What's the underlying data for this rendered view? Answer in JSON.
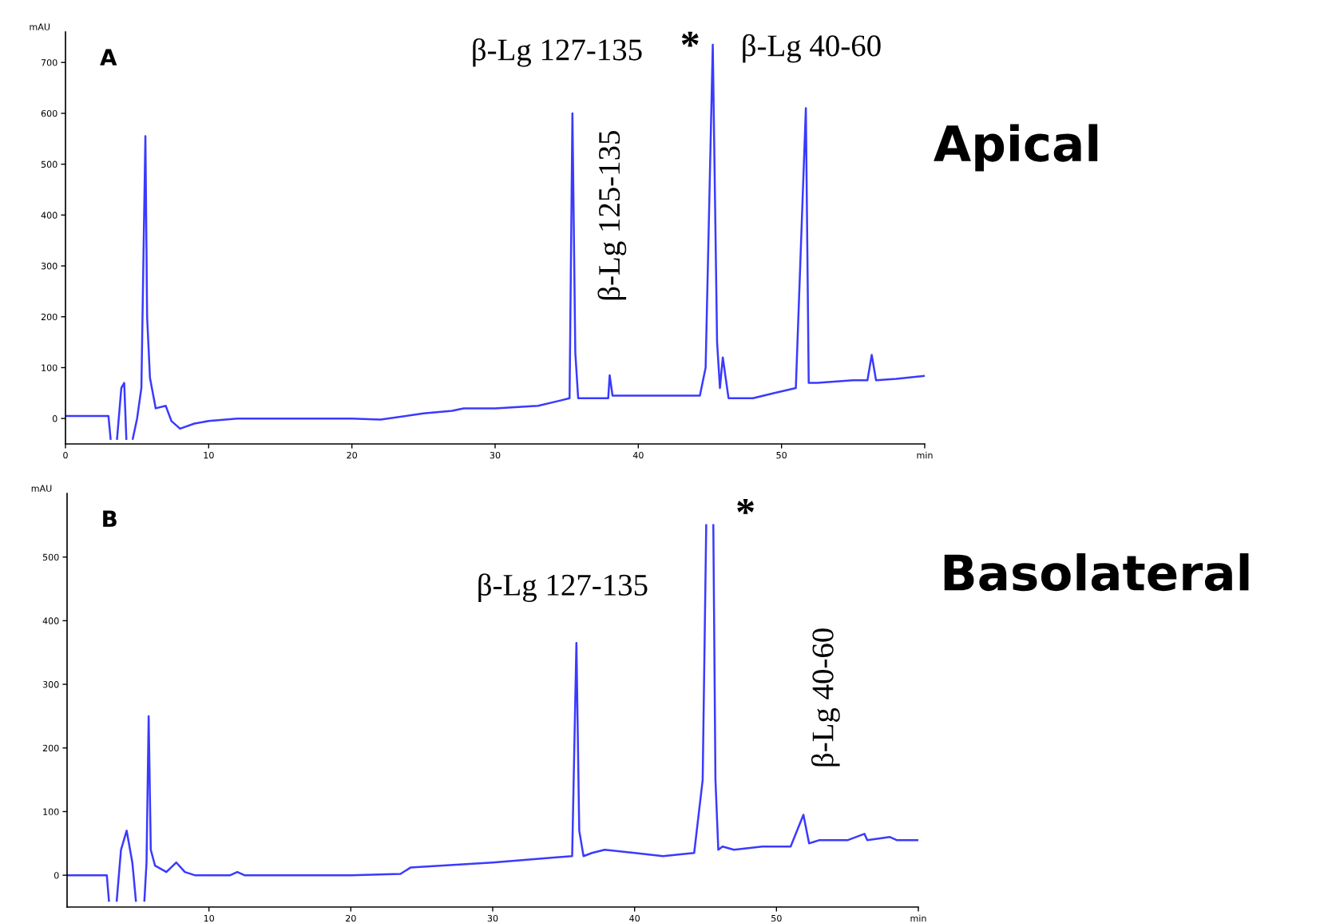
{
  "chart_data": [
    {
      "type": "line",
      "title": "Apical",
      "ylabel": "mAU",
      "xlim": [
        0,
        60
      ],
      "ylim": [
        -50,
        760
      ],
      "xticks": [
        0,
        10,
        20,
        30,
        40,
        50,
        {
          "value": 60,
          "label": "min"
        }
      ],
      "yticks": [
        0,
        100,
        200,
        300,
        400,
        500,
        600,
        700
      ],
      "grid": false,
      "legend": false,
      "marker": "none",
      "line_style": "solid",
      "series": [
        {
          "color": "#3a3aff",
          "x": [
            0,
            3.0,
            3.15,
            3.3,
            3.5,
            3.6,
            3.9,
            4.1,
            4.25,
            4.3,
            4.6,
            4.7,
            5.0,
            5.3,
            5.58,
            5.7,
            5.9,
            6.3,
            7.0,
            7.4,
            8.0,
            9,
            10,
            12,
            20,
            22,
            25,
            27,
            27.8,
            30,
            33,
            34.5,
            35.2,
            35.4,
            35.6,
            35.8,
            37,
            37.9,
            38,
            38.2,
            40,
            42,
            44.3,
            44.7,
            45.2,
            45.5,
            45.7,
            45.9,
            46.3,
            48,
            49.5,
            51.0,
            51.7,
            51.9,
            52.5,
            55,
            56.0,
            56.3,
            56.6,
            58,
            60
          ],
          "values": [
            5,
            5,
            -40,
            null,
            null,
            -40,
            60,
            70,
            -40,
            null,
            null,
            -40,
            0,
            60,
            555,
            200,
            80,
            20,
            25,
            -5,
            -20,
            -10,
            -5,
            0,
            0,
            -2,
            10,
            15,
            20,
            20,
            25,
            35,
            40,
            600,
            130,
            40,
            40,
            40,
            85,
            45,
            45,
            45,
            45,
            100,
            735,
            150,
            60,
            120,
            40,
            40,
            50,
            60,
            610,
            70,
            70,
            75,
            75,
            125,
            75,
            78,
            84
          ]
        }
      ],
      "annotations": [
        "A",
        "β-Lg 127-135",
        "β-Lg 125-135",
        "*",
        "β-Lg 40-60"
      ]
    },
    {
      "type": "line",
      "title": "Basolateral",
      "ylabel": "mAU",
      "xlim": [
        0,
        60
      ],
      "ylim": [
        -50,
        600
      ],
      "xticks": [
        10,
        20,
        30,
        40,
        50,
        {
          "value": 60,
          "label": "min"
        }
      ],
      "yticks": [
        0,
        100,
        200,
        300,
        400,
        500
      ],
      "grid": false,
      "legend": false,
      "marker": "none",
      "line_style": "solid",
      "series": [
        {
          "color": "#3a3aff",
          "x": [
            0,
            2.8,
            2.95,
            3.0,
            3.3,
            3.5,
            3.8,
            4.2,
            4.6,
            4.85,
            5.0,
            5.3,
            5.45,
            5.6,
            5.75,
            5.9,
            6.2,
            6.6,
            7.0,
            7.7,
            8.3,
            9,
            11.5,
            12,
            12.5,
            20,
            23.5,
            24.2,
            30,
            34.5,
            35.6,
            35.9,
            36.1,
            36.4,
            37,
            37.9,
            40,
            42,
            44.2,
            44.8,
            45.05,
            45.3,
            45.5,
            45.55,
            45.7,
            45.9,
            46.2,
            47,
            49,
            51.0,
            51.9,
            52.3,
            53,
            55,
            56.2,
            56.4,
            58,
            58.5,
            60
          ],
          "values": [
            0,
            0,
            -40,
            null,
            null,
            -40,
            40,
            70,
            20,
            -40,
            null,
            null,
            -40,
            20,
            250,
            40,
            15,
            10,
            5,
            20,
            5,
            0,
            0,
            5,
            0,
            0,
            2,
            12,
            20,
            28,
            30,
            365,
            70,
            30,
            35,
            40,
            35,
            30,
            35,
            150,
            550,
            null,
            null,
            550,
            150,
            40,
            45,
            40,
            45,
            45,
            95,
            50,
            55,
            55,
            65,
            55,
            60,
            55,
            55
          ]
        }
      ],
      "annotations": [
        "B",
        "β-Lg 127-135",
        "*",
        "β-Lg 40-60"
      ]
    }
  ]
}
